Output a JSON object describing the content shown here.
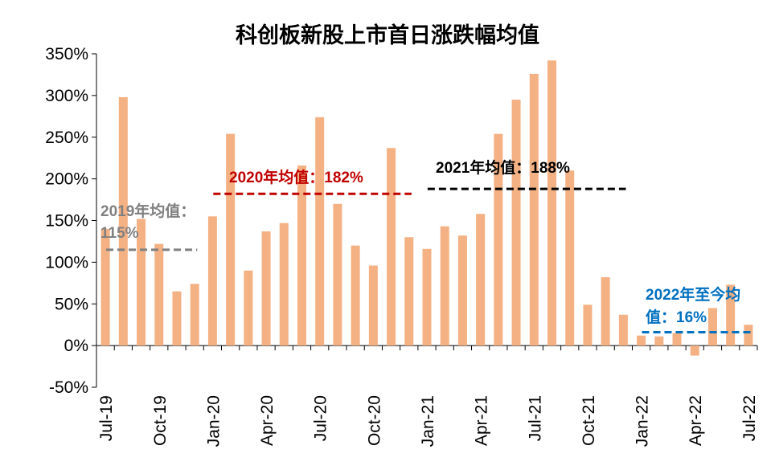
{
  "chart_data": {
    "type": "bar",
    "title": "科创板新股上市首日涨跌幅均值",
    "categories": [
      "Jul-19",
      "Aug-19",
      "Sep-19",
      "Oct-19",
      "Nov-19",
      "Dec-19",
      "Jan-20",
      "Feb-20",
      "Mar-20",
      "Apr-20",
      "May-20",
      "Jun-20",
      "Jul-20",
      "Aug-20",
      "Sep-20",
      "Oct-20",
      "Nov-20",
      "Dec-20",
      "Jan-21",
      "Feb-21",
      "Mar-21",
      "Apr-21",
      "May-21",
      "Jun-21",
      "Jul-21",
      "Aug-21",
      "Sep-21",
      "Oct-21",
      "Nov-21",
      "Dec-21",
      "Jan-22",
      "Feb-22",
      "Mar-22",
      "Apr-22",
      "May-22",
      "Jun-22",
      "Jul-22"
    ],
    "tick_labels": [
      "Jul-19",
      "Oct-19",
      "Jan-20",
      "Apr-20",
      "Jul-20",
      "Oct-20",
      "Jan-21",
      "Apr-21",
      "Jul-21",
      "Oct-21",
      "Jan-22",
      "Apr-22",
      "Jul-22"
    ],
    "values": [
      140,
      298,
      152,
      122,
      65,
      74,
      155,
      254,
      90,
      137,
      147,
      216,
      274,
      170,
      120,
      96,
      237,
      130,
      116,
      143,
      132,
      158,
      254,
      295,
      326,
      342,
      210,
      49,
      82,
      37,
      12,
      11,
      15,
      -12,
      45,
      73,
      25
    ],
    "ylim": [
      -50,
      350
    ],
    "yticks": [
      -50,
      0,
      50,
      100,
      150,
      200,
      250,
      300,
      350
    ],
    "ytick_suffix": "%",
    "xlabel": "",
    "ylabel": "",
    "grid": false,
    "bar_color": "#F4B183",
    "annotations": [
      {
        "text_lines": [
          "2019年均值：",
          "115%"
        ],
        "value": 115,
        "from": 0,
        "to": 5,
        "color": "#808080"
      },
      {
        "text_lines": [
          "2020年均值：182%"
        ],
        "value": 182,
        "from": 6,
        "to": 17,
        "color": "#C00000"
      },
      {
        "text_lines": [
          "2021年均值：188%"
        ],
        "value": 188,
        "from": 18,
        "to": 29,
        "color": "#000000"
      },
      {
        "text_lines": [
          "2022年至今均",
          "值：16%"
        ],
        "value": 16,
        "from": 30,
        "to": 36,
        "color": "#0070C0"
      }
    ]
  }
}
